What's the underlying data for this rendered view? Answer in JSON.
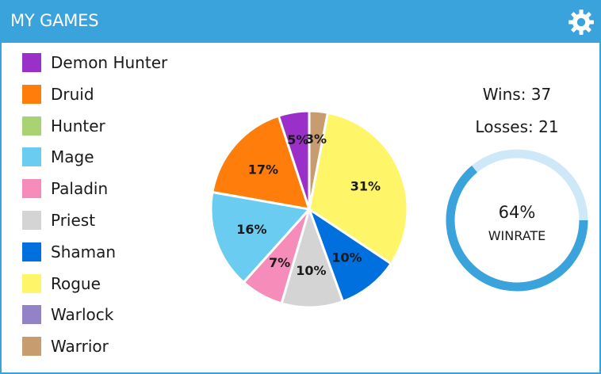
{
  "header": {
    "title": "MY GAMES",
    "icon": "gear-icon",
    "color": "#3ba3dc"
  },
  "legend": {
    "items": [
      {
        "label": "Demon Hunter",
        "color": "#9b30c8"
      },
      {
        "label": "Druid",
        "color": "#ff7d0a"
      },
      {
        "label": "Hunter",
        "color": "#a9d372"
      },
      {
        "label": "Mage",
        "color": "#69ccf0"
      },
      {
        "label": "Paladin",
        "color": "#f58cba"
      },
      {
        "label": "Priest",
        "color": "#d4d4d4"
      },
      {
        "label": "Shaman",
        "color": "#0070de"
      },
      {
        "label": "Rogue",
        "color": "#fff569"
      },
      {
        "label": "Warlock",
        "color": "#9482c9"
      },
      {
        "label": "Warrior",
        "color": "#c79c6e"
      }
    ]
  },
  "chart_data": {
    "type": "pie",
    "slices": [
      {
        "category": "Warrior",
        "value": 3,
        "label": "3%",
        "color": "#c79c6e"
      },
      {
        "category": "Rogue",
        "value": 31,
        "label": "31%",
        "color": "#fff569"
      },
      {
        "category": "Shaman",
        "value": 10,
        "label": "10%",
        "color": "#0070de"
      },
      {
        "category": "Priest",
        "value": 10,
        "label": "10%",
        "color": "#d4d4d4"
      },
      {
        "category": "Paladin",
        "value": 7,
        "label": "7%",
        "color": "#f58cba"
      },
      {
        "category": "Mage",
        "value": 16,
        "label": "16%",
        "color": "#69ccf0"
      },
      {
        "category": "Druid",
        "value": 17,
        "label": "17%",
        "color": "#ff7d0a"
      },
      {
        "category": "Demon Hunter",
        "value": 5,
        "label": "5%",
        "color": "#9b30c8"
      }
    ]
  },
  "stats": {
    "wins": "Wins: 37",
    "losses": "Losses: 21"
  },
  "winrate": {
    "value": 64,
    "percent_text": "64%",
    "label": "WINRATE",
    "track_color": "#cfe8f7",
    "fill_color": "#3ba3dc"
  }
}
